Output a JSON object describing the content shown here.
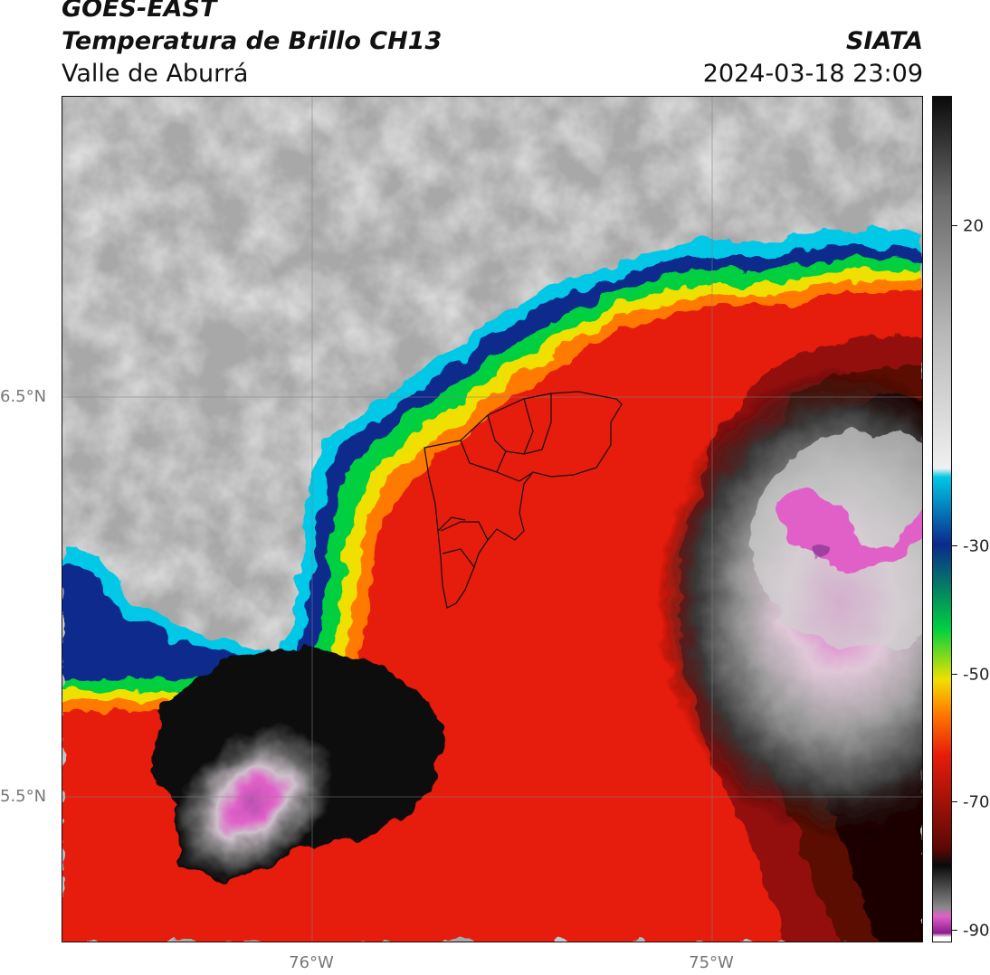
{
  "header": {
    "title_line1": "GOES-EAST",
    "title_line2": "Temperatura de Brillo CH13",
    "region": "Valle de Aburrá",
    "organization": "SIATA",
    "datetime": "2024-03-18 23:09"
  },
  "axes": {
    "latitude_labels": [
      "6.5°N",
      "5.5°N"
    ],
    "longitude_labels": [
      "76°W",
      "75°W"
    ]
  },
  "colorbar": {
    "tick_labels": [
      "20",
      "-30",
      "-50",
      "-70",
      "-90"
    ],
    "colors": {
      "warm_gray": "#b8b8b8",
      "cyan": "#00c8e6",
      "blue": "#0a2a8c",
      "green": "#00d040",
      "yellow": "#f0e000",
      "orange": "#ff7a00",
      "red": "#e61c0a",
      "dark_red": "#5a0806",
      "black": "#0a0a0a",
      "pink": "#e060c8",
      "purple": "#8c1c8c"
    }
  }
}
